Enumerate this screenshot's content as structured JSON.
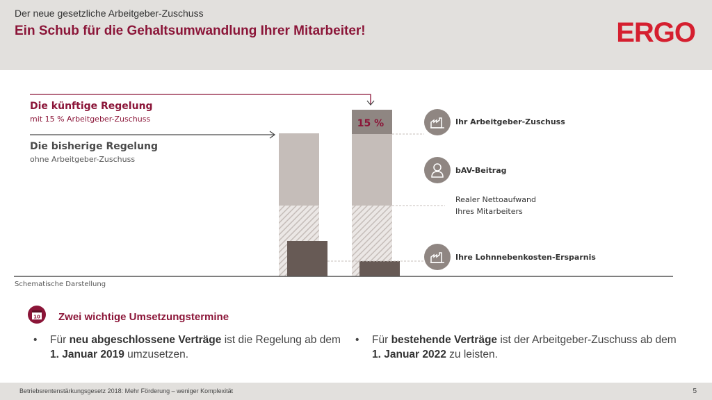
{
  "header": {
    "subtitle": "Der neue gesetzliche Arbeitgeber-Zuschuss",
    "title": "Ein Schub für die Gehaltsumwandlung Ihrer Mitarbeiter!",
    "logo": "ERGO"
  },
  "rules": {
    "future_title": "Die künftige Regelung",
    "future_sub": "mit 15 % Arbeitgeber-Zuschuss",
    "past_title": "Die bisherige Regelung",
    "past_sub": "ohne Arbeitgeber-Zuschuss"
  },
  "chart": {
    "percent_label": "15 %",
    "schematic": "Schematische Darstellung"
  },
  "legend": {
    "employer_contribution": "Ihr Arbeitgeber-Zuschuss",
    "bav_contribution": "bAV-Beitrag",
    "net_cost_line1": "Realer Nettoaufwand",
    "net_cost_line2": "Ihres Mitarbeiters",
    "savings": "Ihre Lohnnebenkosten-Ersparnis"
  },
  "dates": {
    "title": "Zwei wichtige Umsetzungstermine",
    "calendar_number": "10",
    "bullet1": {
      "prefix": "Für ",
      "bold1": "neu abgeschlossene Verträge",
      "mid": " ist die Regelung ab dem ",
      "bold2": "1. Januar 2019",
      "suffix": " umzusetzen."
    },
    "bullet2": {
      "prefix": "Für ",
      "bold1": "bestehende Verträge",
      "mid": " ist der Arbeitgeber-Zuschuss ab dem ",
      "bold2": "1. Januar 2022",
      "suffix": " zu leisten."
    }
  },
  "footer": {
    "text": "Betriebsrentenstärkungsgesetz 2018: Mehr Förderung – weniger Komplexität",
    "page": "5"
  },
  "colors": {
    "brand_red": "#d51f2f",
    "accent_burgundy": "#8b1538",
    "bar_light": "#c5bdb9",
    "bar_dark": "#675a55",
    "header_bg": "#e2e0dd"
  }
}
